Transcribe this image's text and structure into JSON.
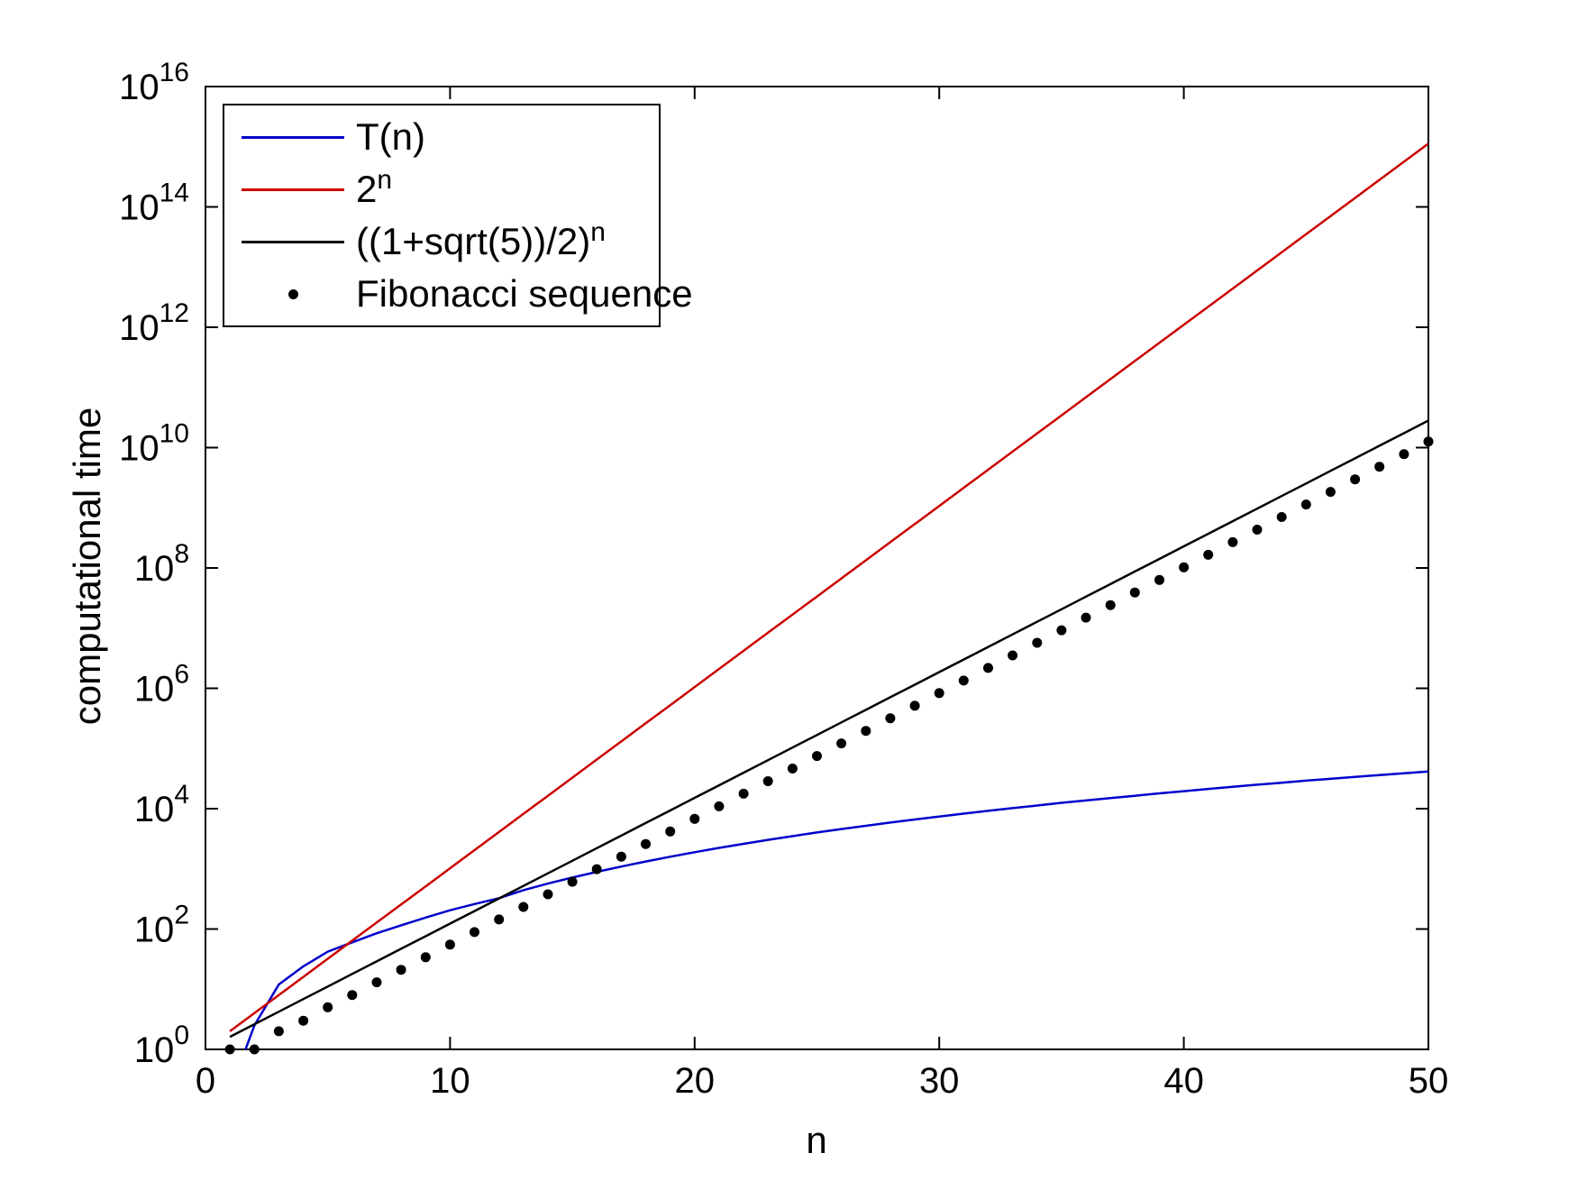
{
  "chart_data": {
    "type": "line",
    "title": "",
    "xlabel": "n",
    "ylabel": "computational time",
    "xlim": [
      0,
      50
    ],
    "ylim": [
      1,
      1e+16
    ],
    "y_scale": "log10",
    "grid": false,
    "legend_position": "northwest",
    "x_ticks": [
      0,
      10,
      20,
      30,
      40,
      50
    ],
    "y_tick_base": "10",
    "y_tick_exponents": [
      0,
      2,
      4,
      6,
      8,
      10,
      12,
      14,
      16
    ],
    "x": [
      1,
      2,
      3,
      4,
      5,
      6,
      7,
      8,
      9,
      10,
      11,
      12,
      13,
      14,
      15,
      16,
      17,
      18,
      19,
      20,
      21,
      22,
      23,
      24,
      25,
      26,
      27,
      28,
      29,
      30,
      31,
      32,
      33,
      34,
      35,
      36,
      37,
      38,
      39,
      40,
      41,
      42,
      43,
      44,
      45,
      46,
      47,
      48,
      49,
      50
    ],
    "series": [
      {
        "name": "T(n)",
        "color": "#0000CC",
        "style": "line",
        "values": [
          0.2,
          2.5,
          12,
          24,
          42,
          60,
          85,
          115,
          155,
          205,
          260,
          325,
          443,
          568,
          717,
          891,
          1093,
          1325,
          1590,
          1888,
          2229,
          2608,
          3030,
          3494,
          4020,
          4580,
          5200,
          5880,
          6610,
          7400,
          8280,
          9210,
          10200,
          11300,
          12500,
          13700,
          15000,
          16400,
          18000,
          19500,
          21300,
          23100,
          25000,
          27000,
          29200,
          31300,
          33700,
          36200,
          38700,
          41400
        ]
      },
      {
        "name": "2^n",
        "color": "#CC0000",
        "style": "line",
        "values": [
          2,
          4,
          8,
          16,
          32,
          64,
          128,
          256,
          512,
          1024,
          2048,
          4096,
          8192,
          16384,
          32768,
          65536,
          131072,
          262144,
          524288,
          1048576,
          2097152,
          4194304,
          8388608,
          16777216,
          33554432,
          67108864,
          134217728,
          268435456,
          536870912,
          1073741824,
          2147483648,
          4294967296,
          8589934592,
          17179869184,
          34359738368,
          68719476736,
          137438953472,
          274877906944,
          549755813888,
          1099511627776,
          2199023255552,
          4398046511104,
          8796093022208,
          17592186044416,
          35184372088832,
          70368744177664,
          140737488355328,
          281474976710656,
          562949953421312,
          1125899906842624
        ]
      },
      {
        "name": "((1+sqrt(5))/2)^n",
        "color": "#000000",
        "style": "line",
        "values": [
          1.618,
          2.618,
          4.236,
          6.854,
          11.09,
          17.94,
          29.03,
          46.98,
          76.01,
          123,
          199,
          322,
          521,
          843,
          1364,
          2207,
          3571,
          5778,
          9349,
          15127,
          24476,
          39603,
          64079,
          103682,
          167761,
          271443,
          439204,
          710647,
          1149851,
          1860498,
          3010349,
          4870847,
          7881196,
          12752043,
          20633239,
          33385282,
          54018521,
          87403803,
          141422324,
          228826127,
          370248451,
          599074578,
          969323029,
          1568397607,
          2537720636,
          4106118243,
          6643838879,
          10749957122,
          17393796001,
          28143753123
        ]
      },
      {
        "name": "Fibonacci sequence",
        "color": "#000000",
        "style": "dot",
        "values": [
          1,
          1,
          2,
          3,
          5,
          8,
          13,
          21,
          34,
          55,
          89,
          144,
          233,
          377,
          610,
          987,
          1597,
          2584,
          4181,
          6765,
          10946,
          17711,
          28657,
          46368,
          75025,
          121393,
          196418,
          317811,
          514229,
          832040,
          1346269,
          2178309,
          3524578,
          5702887,
          9227465,
          14930352,
          24157817,
          39088169,
          63245986,
          102334155,
          165580141,
          267914296,
          433494437,
          701408733,
          1134903170,
          1836311903,
          2971215073,
          4807526976,
          7778742049,
          12586269025
        ]
      }
    ]
  }
}
